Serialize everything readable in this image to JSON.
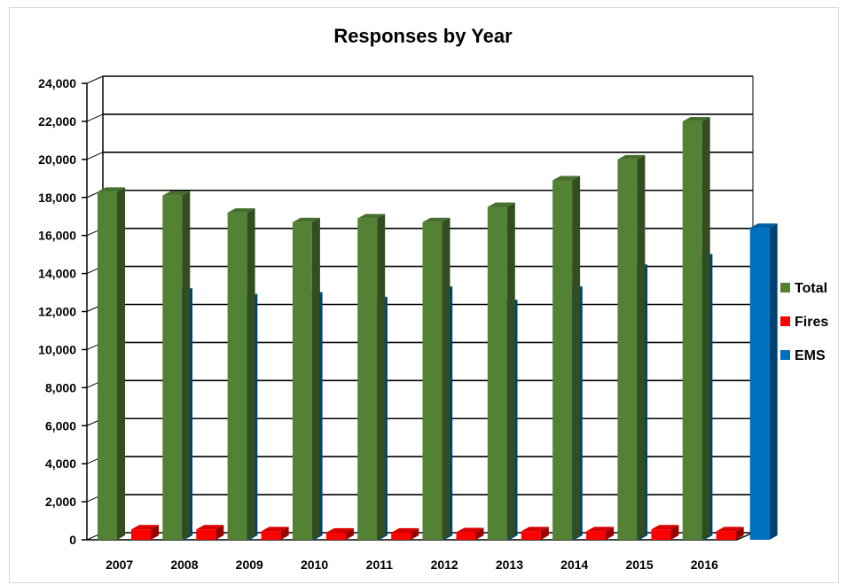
{
  "chart_data": {
    "type": "bar",
    "title": "Responses by Year",
    "xlabel": "",
    "ylabel": "",
    "categories": [
      "2007",
      "2008",
      "2009",
      "2010",
      "2011",
      "2012",
      "2013",
      "2014",
      "2015",
      "2016"
    ],
    "ylim": [
      0,
      24000
    ],
    "yticks": [
      "0",
      "2,000",
      "4,000",
      "6,000",
      "8,000",
      "10,000",
      "12,000",
      "14,000",
      "16,000",
      "18,000",
      "20,000",
      "22,000",
      "24,000"
    ],
    "grid": true,
    "legend_position": "right",
    "series": [
      {
        "name": "Total",
        "color": "#548235",
        "values": [
          18300,
          18100,
          17200,
          16700,
          16900,
          16700,
          17500,
          18900,
          20000,
          22000
        ]
      },
      {
        "name": "Fires",
        "color": "#ff0000",
        "values": [
          550,
          550,
          450,
          380,
          380,
          400,
          450,
          450,
          550,
          450
        ]
      },
      {
        "name": "EMS",
        "color": "#0070c0",
        "values": [
          13000,
          12700,
          12800,
          12550,
          13100,
          12400,
          13100,
          14250,
          14800,
          16400
        ]
      }
    ]
  }
}
